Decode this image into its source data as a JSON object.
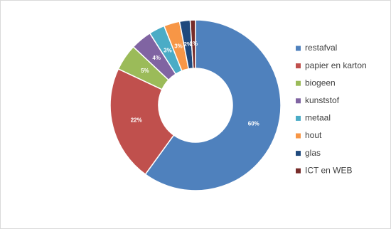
{
  "chart_data": {
    "type": "donut",
    "categories": [
      "restafval",
      "papier en karton",
      "biogeen",
      "kunststof",
      "metaal",
      "hout",
      "glas",
      "ICT en WEB"
    ],
    "values": [
      60,
      22,
      5,
      4,
      3,
      3,
      2,
      1
    ],
    "value_labels": [
      "60%",
      "22%",
      "5%",
      "4%",
      "3%",
      "3%",
      "2%",
      "1%"
    ],
    "colors": [
      "#4f81bd",
      "#c0504d",
      "#9bbb59",
      "#8064a2",
      "#4bacc6",
      "#f79646",
      "#1f497d",
      "#772c2a"
    ],
    "legend": "right"
  }
}
